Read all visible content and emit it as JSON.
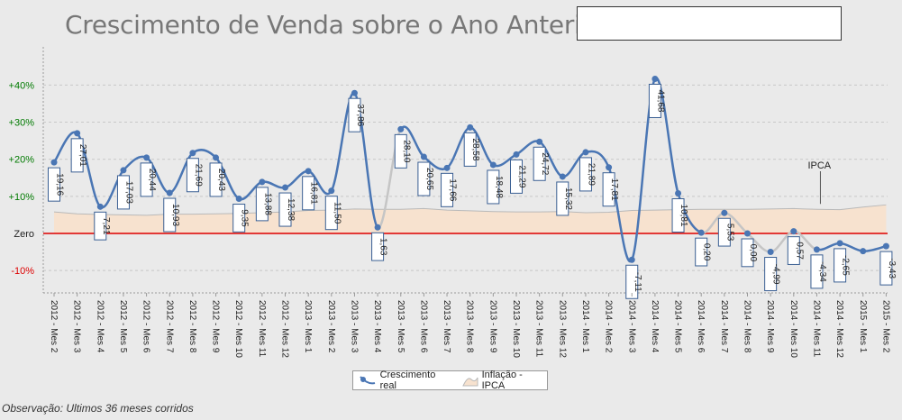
{
  "page": {
    "title": "Crescimento de Venda sobre o Ano Anterior -",
    "footnote": "Observação: Ultimos 36 meses corridos"
  },
  "colors": {
    "series_line": "#4a76b4",
    "series_faded": "#c5c5c5",
    "band_fill": "#f7e2cf",
    "band_stroke": "#b9b9b9",
    "zero_line": "#dd0000",
    "pos_tick": "#007a00",
    "neg_tick": "#dd0000"
  },
  "chart_data": {
    "type": "line",
    "ylim": [
      -16,
      46
    ],
    "y_ticks": [
      {
        "value": 40,
        "label": "+40%"
      },
      {
        "value": 30,
        "label": "+30%"
      },
      {
        "value": 20,
        "label": "+20%"
      },
      {
        "value": 10,
        "label": "+10%"
      },
      {
        "value": 0,
        "label": "Zero"
      },
      {
        "value": -10,
        "label": "-10%"
      }
    ],
    "grid": true,
    "legend_position": "bottom-center",
    "categories": [
      "2012 - Mes 2",
      "2012 - Mes 3",
      "2012 - Mes 4",
      "2012 - Mes 5",
      "2012 - Mes 6",
      "2012 - Mes 7",
      "2012 - Mes 8",
      "2012 - Mes 9",
      "2012 - Mes 10",
      "2012 - Mes 11",
      "2012 - Mes 12",
      "2013 - Mes 1",
      "2013 - Mes 2",
      "2013 - Mes 3",
      "2013 - Mes 4",
      "2013 - Mes 5",
      "2013 - Mes 6",
      "2013 - Mes 7",
      "2013 - Mes 8",
      "2013 - Mes 9",
      "2013 - Mes 10",
      "2013 - Mes 11",
      "2013 - Mes 12",
      "2014 - Mes 1",
      "2014 - Mes 2",
      "2014 - Mes 3",
      "2014 - Mes 4",
      "2014 - Mes 5",
      "2014 - Mes 6",
      "2014 - Mes 7",
      "2014 - Mes 8",
      "2014 - Mes 9",
      "2014 - Mes 10",
      "2014 - Mes 11",
      "2014 - Mes 12",
      "2015 - Mes 1",
      "2015 - Mes 2"
    ],
    "series": [
      {
        "name": "Crescimento real",
        "values": [
          19.16,
          27.01,
          7.21,
          17.03,
          20.44,
          10.93,
          21.69,
          20.43,
          9.35,
          13.88,
          12.38,
          16.81,
          11.5,
          37.86,
          1.63,
          28.1,
          20.65,
          17.66,
          28.58,
          18.48,
          21.29,
          24.72,
          15.32,
          21.89,
          17.81,
          -7.11,
          41.68,
          10.81,
          0.2,
          5.53,
          0.0,
          -4.99,
          0.57,
          -4.34,
          -2.65,
          -4.78,
          -3.43
        ],
        "labels": [
          "19,16",
          "27,01",
          "7,21",
          "17,03",
          "20,44",
          "10,93",
          "21,69",
          "20,43",
          "9,35",
          "13,88",
          "12,38",
          "16,81",
          "11,50",
          "37,86",
          "1,63",
          "28,10",
          "20,65",
          "17,66",
          "28,58",
          "18,48",
          "21,29",
          "24,72",
          "15,32",
          "21,89",
          "17,81",
          "-7,11",
          "41,68",
          "10,81",
          "0,20",
          "5,53",
          "0,00",
          "-4,99",
          "0,57",
          "-4,34",
          "-2,65",
          "-4,78",
          "-3,43"
        ],
        "labeled": [
          true,
          true,
          true,
          true,
          true,
          true,
          true,
          true,
          true,
          true,
          true,
          true,
          true,
          true,
          true,
          true,
          true,
          true,
          true,
          true,
          true,
          true,
          true,
          true,
          true,
          true,
          true,
          true,
          true,
          true,
          true,
          true,
          true,
          true,
          true,
          false,
          true
        ]
      },
      {
        "name": "Inflação - IPCA",
        "values": [
          5.8,
          5.3,
          5.1,
          5.0,
          4.9,
          5.2,
          5.2,
          5.3,
          5.4,
          5.6,
          5.8,
          6.2,
          6.3,
          6.6,
          6.5,
          6.5,
          6.7,
          6.3,
          6.1,
          5.9,
          5.8,
          5.8,
          5.9,
          5.6,
          5.7,
          6.2,
          6.3,
          6.4,
          6.5,
          6.5,
          6.5,
          6.6,
          6.7,
          6.5,
          6.4,
          7.1,
          7.7
        ]
      }
    ],
    "annotation": {
      "text": "IPCA"
    }
  }
}
